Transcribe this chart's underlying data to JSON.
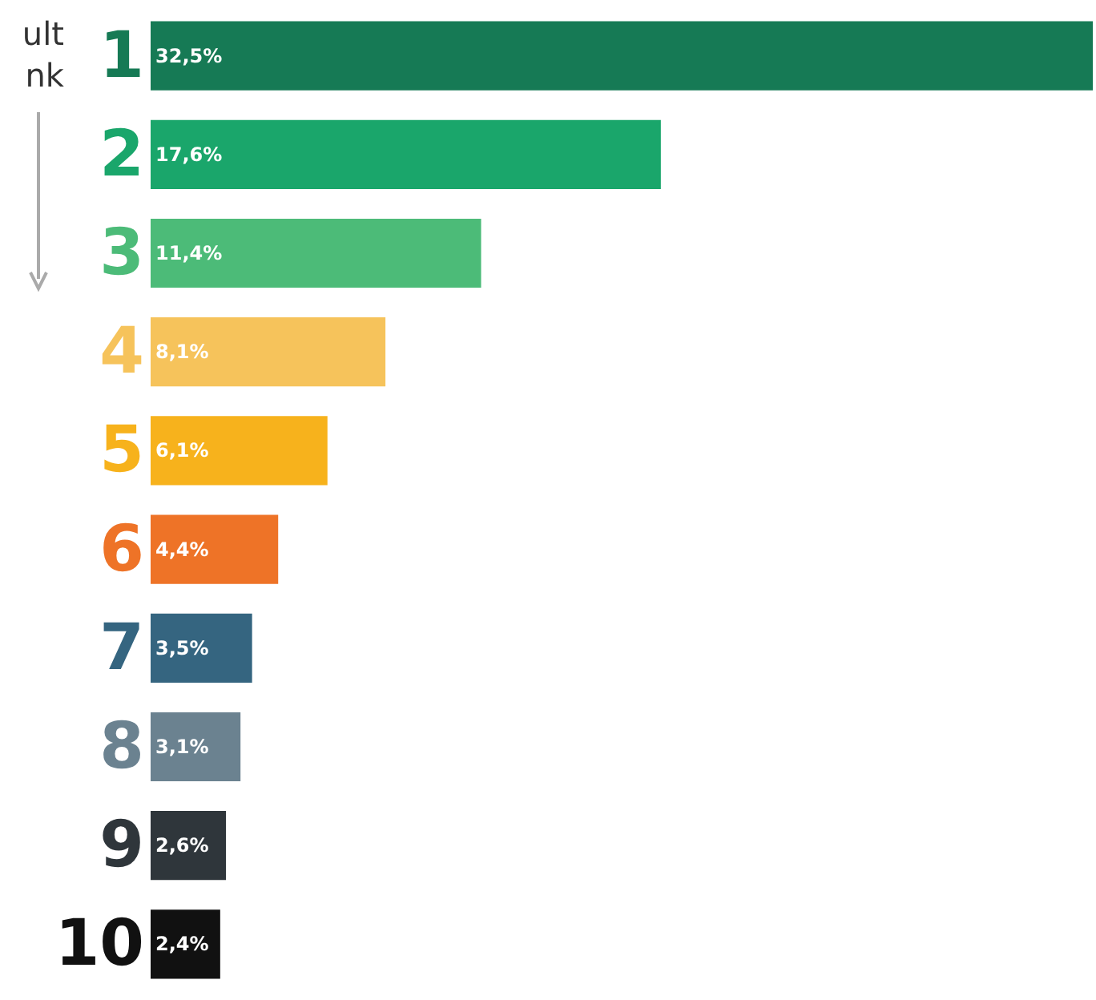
{
  "chart_data": {
    "type": "bar",
    "orientation": "horizontal",
    "categories": [
      "1",
      "2",
      "3",
      "4",
      "5",
      "6",
      "7",
      "8",
      "9",
      "10"
    ],
    "values": [
      32.5,
      17.6,
      11.4,
      8.1,
      6.1,
      4.4,
      3.5,
      3.1,
      2.6,
      2.4
    ],
    "value_labels": [
      "32,5%",
      "17,6%",
      "11,4%",
      "8,1%",
      "6,1%",
      "4,4%",
      "3,5%",
      "3,1%",
      "2,6%",
      "2,4%"
    ],
    "colors": [
      "#167a55",
      "#1aa66b",
      "#4cbb78",
      "#f6c35b",
      "#f7b21c",
      "#ee7327",
      "#356580",
      "#6b8290",
      "#2f363b",
      "#111111"
    ],
    "annotations": [
      "ult",
      "nk"
    ]
  }
}
